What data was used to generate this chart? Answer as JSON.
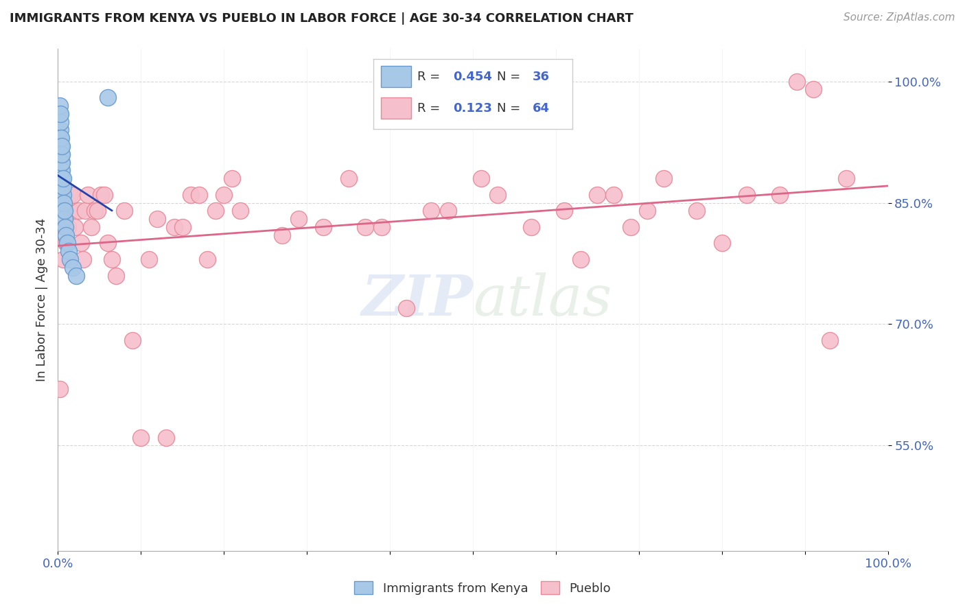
{
  "title": "IMMIGRANTS FROM KENYA VS PUEBLO IN LABOR FORCE | AGE 30-34 CORRELATION CHART",
  "source": "Source: ZipAtlas.com",
  "ylabel": "In Labor Force | Age 30-34",
  "x_min": 0.0,
  "x_max": 1.0,
  "y_min": 0.42,
  "y_max": 1.04,
  "y_ticks": [
    0.55,
    0.7,
    0.85,
    1.0
  ],
  "y_tick_labels": [
    "55.0%",
    "70.0%",
    "85.0%",
    "100.0%"
  ],
  "legend_kenya_r": "0.454",
  "legend_kenya_n": "36",
  "legend_pueblo_r": "0.123",
  "legend_pueblo_n": "64",
  "kenya_color": "#a8c8e8",
  "kenya_edge": "#6699cc",
  "pueblo_color": "#f5bfcc",
  "pueblo_edge": "#e88898",
  "kenya_line_color": "#2244aa",
  "pueblo_line_color": "#dd6688",
  "background_color": "#ffffff",
  "watermark_color": "#ccd8ee",
  "kenya_x": [
    0.002,
    0.002,
    0.003,
    0.003,
    0.003,
    0.003,
    0.003,
    0.004,
    0.004,
    0.004,
    0.004,
    0.004,
    0.004,
    0.005,
    0.005,
    0.005,
    0.005,
    0.005,
    0.005,
    0.005,
    0.006,
    0.006,
    0.006,
    0.006,
    0.007,
    0.007,
    0.008,
    0.008,
    0.009,
    0.01,
    0.011,
    0.013,
    0.015,
    0.018,
    0.022,
    0.06
  ],
  "kenya_y": [
    0.96,
    0.97,
    0.92,
    0.93,
    0.94,
    0.95,
    0.96,
    0.88,
    0.89,
    0.9,
    0.91,
    0.92,
    0.93,
    0.86,
    0.87,
    0.88,
    0.89,
    0.9,
    0.91,
    0.92,
    0.85,
    0.86,
    0.87,
    0.88,
    0.84,
    0.85,
    0.83,
    0.84,
    0.82,
    0.81,
    0.8,
    0.79,
    0.78,
    0.77,
    0.76,
    0.98
  ],
  "pueblo_x": [
    0.002,
    0.006,
    0.008,
    0.01,
    0.012,
    0.015,
    0.015,
    0.018,
    0.02,
    0.025,
    0.028,
    0.03,
    0.033,
    0.036,
    0.04,
    0.044,
    0.048,
    0.052,
    0.056,
    0.06,
    0.065,
    0.07,
    0.08,
    0.09,
    0.1,
    0.11,
    0.12,
    0.13,
    0.14,
    0.15,
    0.16,
    0.17,
    0.18,
    0.19,
    0.2,
    0.21,
    0.22,
    0.27,
    0.29,
    0.32,
    0.35,
    0.37,
    0.39,
    0.42,
    0.45,
    0.47,
    0.51,
    0.53,
    0.57,
    0.61,
    0.63,
    0.65,
    0.67,
    0.69,
    0.71,
    0.73,
    0.77,
    0.8,
    0.83,
    0.87,
    0.89,
    0.91,
    0.93,
    0.95
  ],
  "pueblo_y": [
    0.62,
    0.78,
    0.82,
    0.8,
    0.82,
    0.84,
    0.86,
    0.86,
    0.82,
    0.84,
    0.8,
    0.78,
    0.84,
    0.86,
    0.82,
    0.84,
    0.84,
    0.86,
    0.86,
    0.8,
    0.78,
    0.76,
    0.84,
    0.68,
    0.56,
    0.78,
    0.83,
    0.56,
    0.82,
    0.82,
    0.86,
    0.86,
    0.78,
    0.84,
    0.86,
    0.88,
    0.84,
    0.81,
    0.83,
    0.82,
    0.88,
    0.82,
    0.82,
    0.72,
    0.84,
    0.84,
    0.88,
    0.86,
    0.82,
    0.84,
    0.78,
    0.86,
    0.86,
    0.82,
    0.84,
    0.88,
    0.84,
    0.8,
    0.86,
    0.86,
    1.0,
    0.99,
    0.68,
    0.88
  ],
  "x_tick_positions": [
    0.0,
    0.1,
    0.2,
    0.3,
    0.4,
    0.5,
    0.6,
    0.7,
    0.8,
    0.9,
    1.0
  ]
}
